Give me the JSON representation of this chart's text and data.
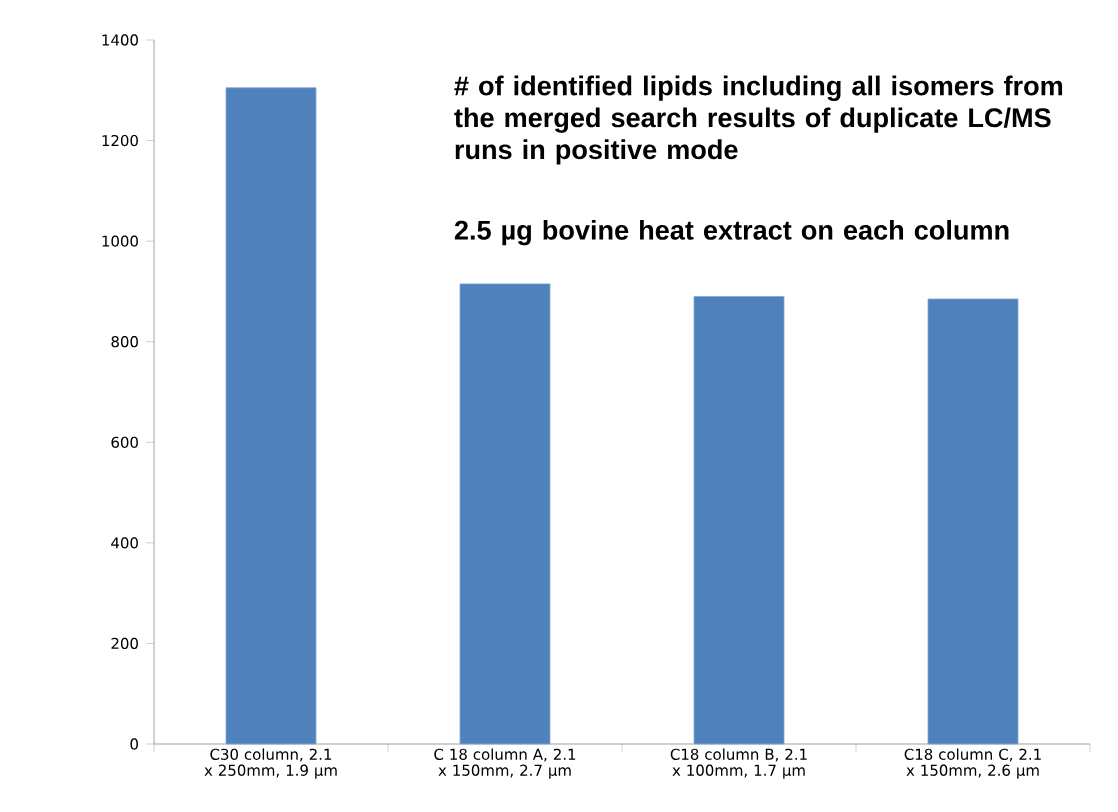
{
  "chart_data": {
    "type": "bar",
    "categories": [
      "C30 column, 2.1 x 250mm, 1.9 µm",
      "C 18 column A, 2.1 x 150mm, 2.7 µm",
      "C18 column B, 2.1 x 100mm, 1.7 µm",
      "C18 column C, 2.1 x 150mm, 2.6 µm"
    ],
    "values": [
      1305,
      915,
      890,
      885
    ],
    "color": "#4f81bd",
    "ylim": [
      0,
      1400
    ],
    "yticks": [
      0,
      200,
      400,
      600,
      800,
      1000,
      1200,
      1400
    ],
    "annotations": [
      "# of identified lipids including all isomers from the merged search results of duplicate LC/MS runs in positive mode",
      "2.5 µg bovine heat extract on each column"
    ]
  }
}
